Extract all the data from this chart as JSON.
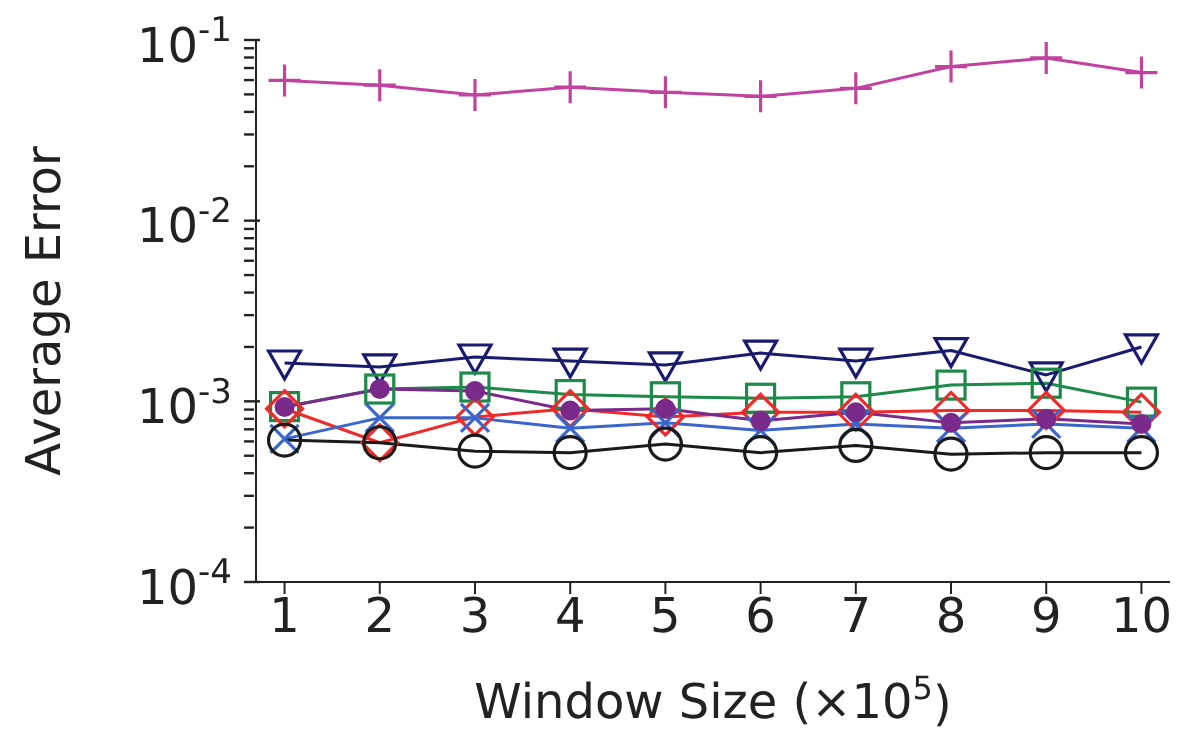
{
  "chart_data": {
    "type": "line",
    "xlabel": "Window Size (×10$^{5}$)",
    "ylabel": "Average Error",
    "log": "y",
    "line_style": "solid",
    "x": [
      1,
      2,
      3,
      4,
      5,
      6,
      7,
      8,
      9,
      10
    ],
    "xlim": [
      0.7,
      10.3
    ],
    "xticks": [
      1,
      2,
      3,
      4,
      5,
      6,
      7,
      8,
      9,
      10
    ],
    "ylim": [
      0.0001,
      0.1
    ],
    "yticks": [
      {
        "value": 0.0001,
        "label": "10$^{-4}$"
      },
      {
        "value": 0.0002,
        "label": null
      },
      {
        "value": 0.0003,
        "label": null
      },
      {
        "value": 0.0004,
        "label": null
      },
      {
        "value": 0.0005,
        "label": null
      },
      {
        "value": 0.0006,
        "label": null
      },
      {
        "value": 0.0007,
        "label": null
      },
      {
        "value": 0.0008,
        "label": null
      },
      {
        "value": 0.0009,
        "label": null
      },
      {
        "value": 0.001,
        "label": "10$^{-3}$"
      },
      {
        "value": 0.002,
        "label": null
      },
      {
        "value": 0.003,
        "label": null
      },
      {
        "value": 0.004,
        "label": null
      },
      {
        "value": 0.005,
        "label": null
      },
      {
        "value": 0.006,
        "label": null
      },
      {
        "value": 0.007,
        "label": null
      },
      {
        "value": 0.008,
        "label": null
      },
      {
        "value": 0.009,
        "label": null
      },
      {
        "value": 0.01,
        "label": "10$^{-2}$"
      },
      {
        "value": 0.02,
        "label": null
      },
      {
        "value": 0.03,
        "label": null
      },
      {
        "value": 0.04,
        "label": null
      },
      {
        "value": 0.05,
        "label": null
      },
      {
        "value": 0.06,
        "label": null
      },
      {
        "value": 0.07,
        "label": null
      },
      {
        "value": 0.08,
        "label": null
      },
      {
        "value": 0.09,
        "label": null
      },
      {
        "value": 0.1,
        "label": "10$^{-1}$"
      }
    ],
    "series": [
      {
        "color": "#c0449f",
        "marker": "plus",
        "values": [
          0.0597,
          0.0562,
          0.0496,
          0.0548,
          0.0513,
          0.0488,
          0.054,
          0.0713,
          0.0796,
          0.066
        ]
      },
      {
        "color": "#1a1a6e",
        "marker": "triangle",
        "values": [
          0.00163,
          0.00155,
          0.00176,
          0.00167,
          0.00159,
          0.00185,
          0.00167,
          0.00191,
          0.0014,
          0.002
        ]
      },
      {
        "color": "#1e8a4a",
        "marker": "square",
        "values": [
          0.000935,
          0.00117,
          0.0012,
          0.00109,
          0.00106,
          0.00104,
          0.00106,
          0.00123,
          0.00126,
          0.00099
        ]
      },
      {
        "color": "#7a2a8a",
        "marker": "dot",
        "values": [
          0.00093,
          0.00117,
          0.00114,
          0.00089,
          0.00091,
          0.00078,
          0.00087,
          0.00076,
          0.0008,
          0.00075
        ]
      },
      {
        "color": "#ee2a2a",
        "marker": "diamond",
        "values": [
          0.00091,
          0.00059,
          0.00082,
          0.00091,
          0.00082,
          0.00087,
          0.00087,
          0.00089,
          0.00089,
          0.00087
        ]
      },
      {
        "color": "#3a66cc",
        "marker": "cross",
        "values": [
          0.00062,
          0.00081,
          0.00081,
          0.00071,
          0.00076,
          0.00069,
          0.00075,
          0.00071,
          0.00075,
          0.00071
        ]
      },
      {
        "color": "#1a1a1a",
        "marker": "circle",
        "values": [
          0.00061,
          0.00059,
          0.00053,
          0.00052,
          0.00058,
          0.00052,
          0.00057,
          0.00051,
          0.00052,
          0.00052
        ]
      }
    ]
  }
}
